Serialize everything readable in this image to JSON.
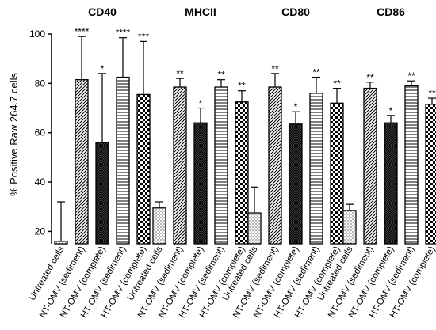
{
  "chart_data": {
    "type": "bar",
    "title": "",
    "xlabel": "",
    "ylabel": "% Positive Raw 264.7 cells",
    "ylim": [
      15,
      100
    ],
    "yticks": [
      20,
      40,
      60,
      80,
      100
    ],
    "grid": false,
    "categories": [
      "Untreated cells",
      "NT-OMV (sediment)",
      "NT-OMV (complete)",
      "HT-OMV (sediment)",
      "HT-OMV (complete)"
    ],
    "patterns": [
      "dots",
      "diagonal",
      "crosshatch",
      "horizontal",
      "checker"
    ],
    "groups": [
      {
        "name": "CD40",
        "values": [
          16,
          81.5,
          56,
          82.5,
          75.5
        ],
        "errors": [
          16,
          17.5,
          28,
          16,
          21.5
        ],
        "significance": [
          "",
          "****",
          "*",
          "****",
          "***"
        ]
      },
      {
        "name": "MHCII",
        "values": [
          29.5,
          78.5,
          64,
          78.5,
          72.5
        ],
        "errors": [
          2.5,
          3.5,
          6,
          3,
          4.5
        ],
        "significance": [
          "",
          "**",
          "*",
          "**",
          "**"
        ]
      },
      {
        "name": "CD80",
        "values": [
          27.5,
          78.5,
          63.5,
          76,
          72
        ],
        "errors": [
          10.5,
          5.5,
          5,
          6.5,
          6
        ],
        "significance": [
          "",
          "**",
          "*",
          "**",
          "**"
        ]
      },
      {
        "name": "CD86",
        "values": [
          28.5,
          78,
          64,
          79,
          71.5
        ],
        "errors": [
          2.5,
          2.5,
          3,
          2,
          2.5
        ],
        "significance": [
          "",
          "**",
          "*",
          "**",
          "**"
        ]
      }
    ]
  }
}
